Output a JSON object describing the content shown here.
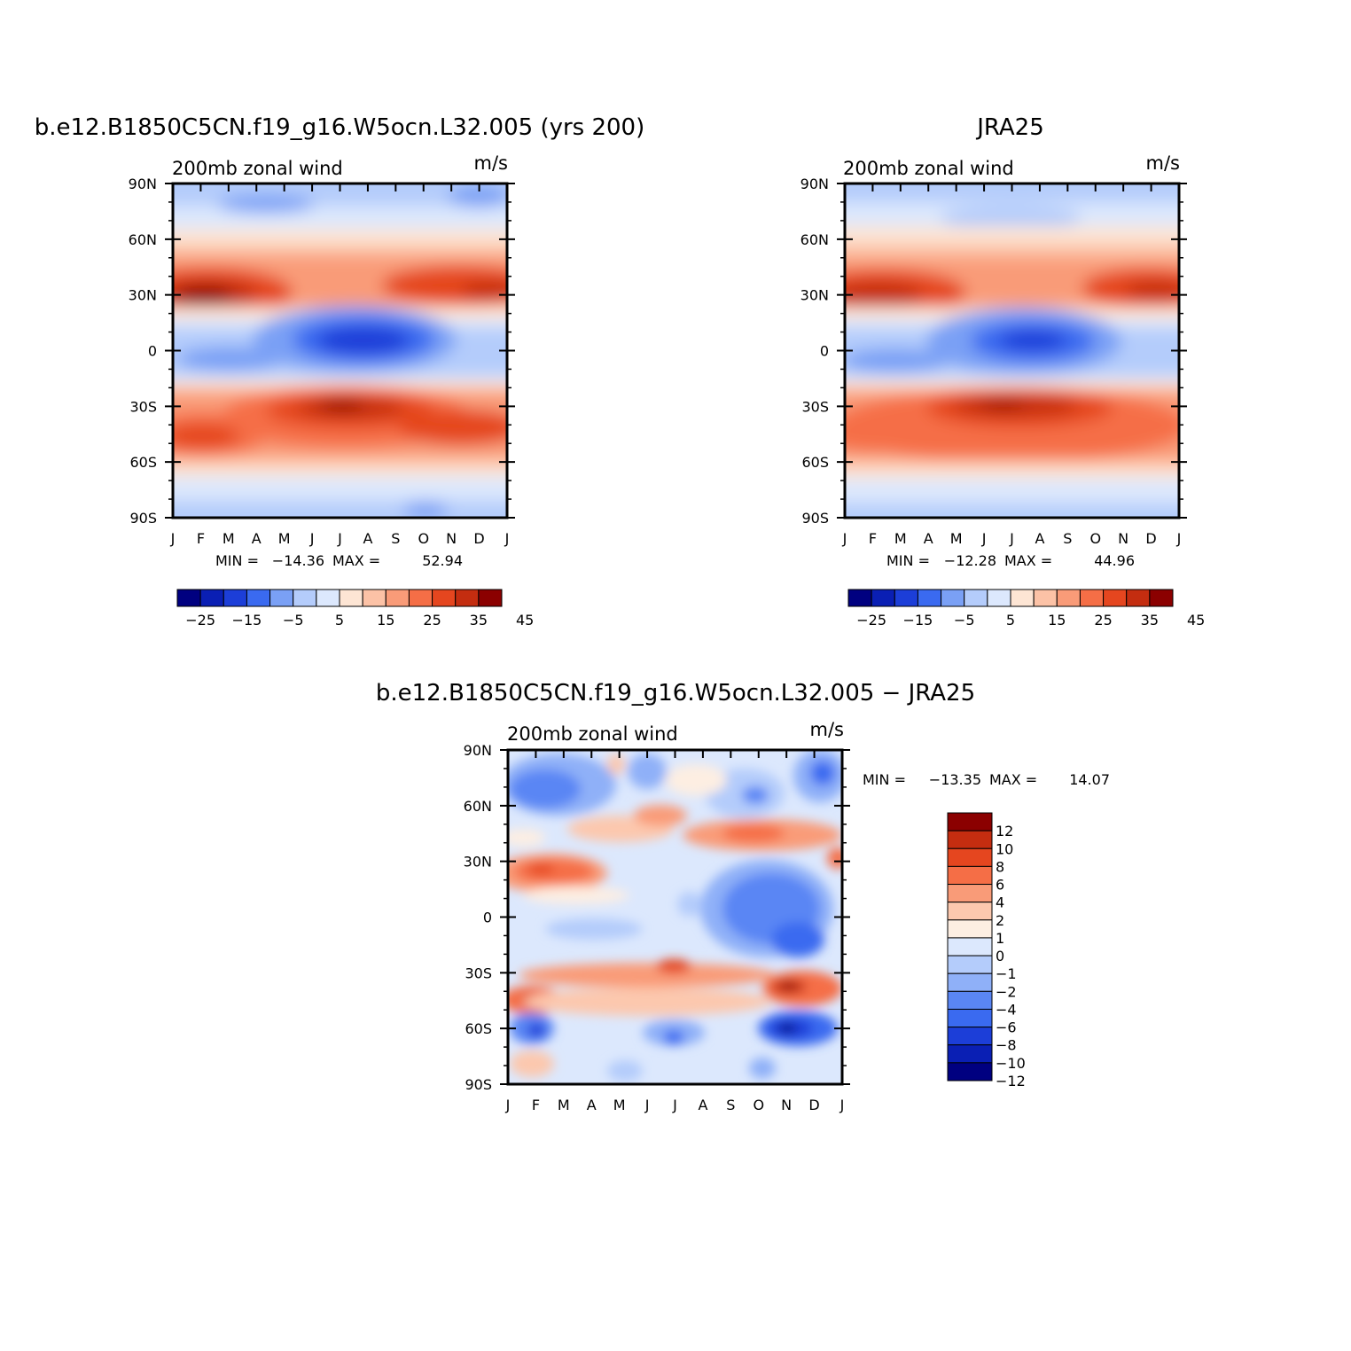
{
  "colors": {
    "absolute_scale": [
      "#000080",
      "#0a1fb4",
      "#1c3ed8",
      "#3a6af0",
      "#7aa0f5",
      "#b4ccfb",
      "#dce8fd",
      "#fde5d4",
      "#fcc2a6",
      "#f99b78",
      "#f56e46",
      "#e5461f",
      "#c42d10",
      "#8b0000"
    ],
    "difference_scale": [
      "#000080",
      "#0a1fb4",
      "#1c3ed8",
      "#3a6af0",
      "#5a86f4",
      "#8fb0f8",
      "#b4ccfb",
      "#dce8fd",
      "#fdeee2",
      "#fcc8ae",
      "#f99b78",
      "#f56e46",
      "#e5461f",
      "#c42d10",
      "#8b0000"
    ]
  },
  "axes": {
    "months": [
      "J",
      "F",
      "M",
      "A",
      "M",
      "J",
      "J",
      "A",
      "S",
      "O",
      "N",
      "D",
      "J"
    ],
    "lats": [
      "90N",
      "60N",
      "30N",
      "0",
      "30S",
      "60S",
      "90S"
    ]
  },
  "panels": {
    "model": {
      "title": "b.e12.B1850C5CN.f19_g16.W5ocn.L32.005 (yrs 200)",
      "left_label": "200mb zonal wind",
      "right_label": "m/s",
      "min_label": "MIN =",
      "min_value": "−14.36",
      "max_label": "MAX =",
      "max_value": "52.94",
      "colorbar_labels": [
        "−25",
        "−15",
        "−5",
        "5",
        "15",
        "25",
        "35",
        "45"
      ]
    },
    "obs": {
      "title": "JRA25",
      "left_label": "200mb zonal wind",
      "right_label": "m/s",
      "min_label": "MIN =",
      "min_value": "−12.28",
      "max_label": "MAX =",
      "max_value": "44.96",
      "colorbar_labels": [
        "−25",
        "−15",
        "−5",
        "5",
        "15",
        "25",
        "35",
        "45"
      ]
    },
    "diff": {
      "title": "b.e12.B1850C5CN.f19_g16.W5ocn.L32.005 − JRA25",
      "left_label": "200mb zonal wind",
      "right_label": "m/s",
      "min_label": "MIN =",
      "min_value": "−13.35",
      "max_label": "MAX =",
      "max_value": "14.07",
      "colorbar_labels": [
        "12",
        "10",
        "8",
        "6",
        "4",
        "2",
        "1",
        "0",
        "−1",
        "−2",
        "−4",
        "−6",
        "−8",
        "−10",
        "−12"
      ]
    }
  },
  "chart_data": [
    {
      "type": "heatmap",
      "title": "b.e12.B1850C5CN.f19_g16.W5ocn.L32.005 (yrs 200)",
      "variable": "200mb zonal wind",
      "units": "m/s",
      "x_ticks": [
        "J",
        "F",
        "M",
        "A",
        "M",
        "J",
        "J",
        "A",
        "S",
        "O",
        "N",
        "D",
        "J"
      ],
      "y_ticks": [
        "90N",
        "60N",
        "30N",
        "0",
        "30S",
        "60S",
        "90S"
      ],
      "ylim": [
        -90,
        90
      ],
      "levels": [
        -30,
        -25,
        -20,
        -15,
        -10,
        -5,
        0,
        5,
        10,
        15,
        20,
        25,
        30,
        35,
        40,
        45,
        50
      ],
      "min": -14.36,
      "max": 52.94,
      "features": [
        {
          "lat": 30,
          "month": 1.5,
          "value": 50
        },
        {
          "lat": 30,
          "month": 12,
          "value": 45
        },
        {
          "lat": 5,
          "month": 8,
          "value": -12
        },
        {
          "lat": -30,
          "month": 7,
          "value": 50
        },
        {
          "lat": -45,
          "month": 2,
          "value": 45
        }
      ]
    },
    {
      "type": "heatmap",
      "title": "JRA25",
      "variable": "200mb zonal wind",
      "units": "m/s",
      "x_ticks": [
        "J",
        "F",
        "M",
        "A",
        "M",
        "J",
        "J",
        "A",
        "S",
        "O",
        "N",
        "D",
        "J"
      ],
      "y_ticks": [
        "90N",
        "60N",
        "30N",
        "0",
        "30S",
        "60S",
        "90S"
      ],
      "ylim": [
        -90,
        90
      ],
      "min": -12.28,
      "max": 44.96,
      "features": [
        {
          "lat": 30,
          "month": 1.5,
          "value": 42
        },
        {
          "lat": 30,
          "month": 12,
          "value": 40
        },
        {
          "lat": 5,
          "month": 7.5,
          "value": -12
        },
        {
          "lat": -30,
          "month": 7,
          "value": 42
        }
      ]
    },
    {
      "type": "heatmap",
      "title": "b.e12.B1850C5CN.f19_g16.W5ocn.L32.005 − JRA25",
      "variable": "200mb zonal wind",
      "units": "m/s",
      "x_ticks": [
        "J",
        "F",
        "M",
        "A",
        "M",
        "J",
        "J",
        "A",
        "S",
        "O",
        "N",
        "D",
        "J"
      ],
      "y_ticks": [
        "90N",
        "60N",
        "30N",
        "0",
        "30S",
        "60S",
        "90S"
      ],
      "ylim": [
        -90,
        90
      ],
      "levels": [
        -12,
        -10,
        -8,
        -6,
        -4,
        -2,
        -1,
        0,
        1,
        2,
        4,
        6,
        8,
        10,
        12
      ],
      "min": -13.35,
      "max": 14.07,
      "features": [
        {
          "lat": 25,
          "month": 2.5,
          "value": 8
        },
        {
          "lat": -40,
          "month": 11,
          "value": 12
        },
        {
          "lat": -40,
          "month": 1,
          "value": 10
        },
        {
          "lat": -60,
          "month": 11,
          "value": -12
        },
        {
          "lat": -60,
          "month": 1,
          "value": -8
        },
        {
          "lat": -5,
          "month": 11,
          "value": -8
        },
        {
          "lat": 70,
          "month": 2,
          "value": -6
        }
      ]
    }
  ]
}
